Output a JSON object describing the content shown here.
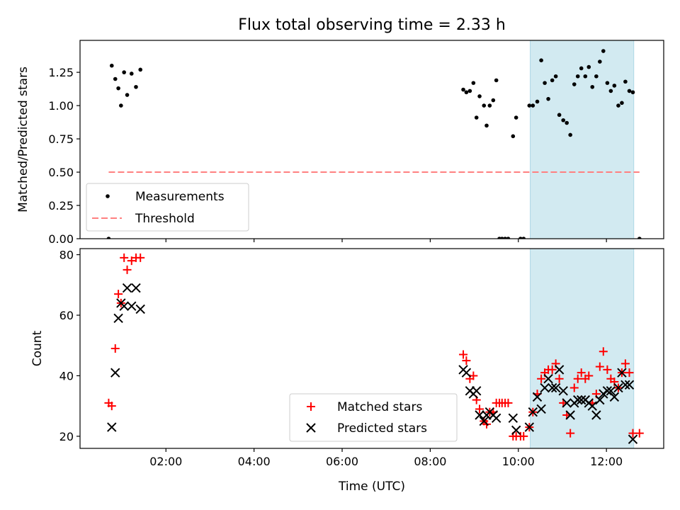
{
  "chart_data": [
    {
      "type": "scatter",
      "title": "Flux total observing time = 2.33 h",
      "ylabel": "Matched/Predicted stars",
      "xlabel": "",
      "xlim": [
        0.05,
        13.3
      ],
      "ylim": [
        0,
        1.49
      ],
      "yticks": [
        0,
        0.25,
        0.5,
        0.75,
        1.0,
        1.25
      ],
      "ytick_labels": [
        "0.00",
        "0.25",
        "0.50",
        "0.75",
        "1.00",
        "1.25"
      ],
      "xticks": [
        2,
        4,
        6,
        8,
        10,
        12
      ],
      "shaded_x_range": [
        10.27,
        12.62
      ],
      "shaded_color": "#add8e6",
      "threshold": {
        "name": "Threshold",
        "y": 0.5,
        "x": [
          0.7,
          12.75
        ],
        "color": "#ff8080"
      },
      "legend_position": "lower-left",
      "series": [
        {
          "name": "Measurements",
          "color": "#000000",
          "marker": "dot",
          "points": [
            [
              0.7,
              0.0
            ],
            [
              0.77,
              1.3
            ],
            [
              0.85,
              1.2
            ],
            [
              0.92,
              1.13
            ],
            [
              0.98,
              1.0
            ],
            [
              1.05,
              1.25
            ],
            [
              1.12,
              1.08
            ],
            [
              1.22,
              1.24
            ],
            [
              1.32,
              1.14
            ],
            [
              1.42,
              1.27
            ],
            [
              8.75,
              1.12
            ],
            [
              8.82,
              1.1
            ],
            [
              8.9,
              1.11
            ],
            [
              8.98,
              1.17
            ],
            [
              9.05,
              0.91
            ],
            [
              9.12,
              1.07
            ],
            [
              9.22,
              1.0
            ],
            [
              9.28,
              0.85
            ],
            [
              9.35,
              1.0
            ],
            [
              9.43,
              1.04
            ],
            [
              9.5,
              1.19
            ],
            [
              9.57,
              0.0
            ],
            [
              9.63,
              0.0
            ],
            [
              9.7,
              0.0
            ],
            [
              9.77,
              0.0
            ],
            [
              9.88,
              0.77
            ],
            [
              9.95,
              0.91
            ],
            [
              10.05,
              0.0
            ],
            [
              10.12,
              0.0
            ],
            [
              10.25,
              1.0
            ],
            [
              10.33,
              1.0
            ],
            [
              10.43,
              1.03
            ],
            [
              10.52,
              1.34
            ],
            [
              10.6,
              1.17
            ],
            [
              10.68,
              1.05
            ],
            [
              10.77,
              1.19
            ],
            [
              10.85,
              1.22
            ],
            [
              10.93,
              0.93
            ],
            [
              11.02,
              0.89
            ],
            [
              11.1,
              0.87
            ],
            [
              11.18,
              0.78
            ],
            [
              11.27,
              1.16
            ],
            [
              11.35,
              1.22
            ],
            [
              11.43,
              1.28
            ],
            [
              11.52,
              1.22
            ],
            [
              11.6,
              1.29
            ],
            [
              11.68,
              1.14
            ],
            [
              11.77,
              1.22
            ],
            [
              11.85,
              1.33
            ],
            [
              11.93,
              1.41
            ],
            [
              12.02,
              1.17
            ],
            [
              12.1,
              1.11
            ],
            [
              12.18,
              1.15
            ],
            [
              12.27,
              1.0
            ],
            [
              12.35,
              1.02
            ],
            [
              12.43,
              1.18
            ],
            [
              12.52,
              1.11
            ],
            [
              12.6,
              1.1
            ],
            [
              12.75,
              0.0
            ]
          ]
        }
      ]
    },
    {
      "type": "scatter",
      "title": "",
      "ylabel": "Count",
      "xlabel": "Time (UTC)",
      "xlim": [
        0.05,
        13.3
      ],
      "ylim": [
        16,
        82
      ],
      "yticks": [
        20,
        40,
        60,
        80
      ],
      "ytick_labels": [
        "20",
        "40",
        "60",
        "80"
      ],
      "xticks": [
        2,
        4,
        6,
        8,
        10,
        12
      ],
      "xtick_labels": [
        "02:00",
        "04:00",
        "06:00",
        "08:00",
        "10:00",
        "12:00"
      ],
      "shaded_x_range": [
        10.27,
        12.62
      ],
      "shaded_color": "#add8e6",
      "legend_position": "lower-center",
      "series": [
        {
          "name": "Matched stars",
          "color": "#ff0000",
          "marker": "plus",
          "points": [
            [
              0.7,
              31
            ],
            [
              0.77,
              30
            ],
            [
              0.85,
              49
            ],
            [
              0.92,
              67
            ],
            [
              0.98,
              64
            ],
            [
              1.05,
              79
            ],
            [
              1.12,
              75
            ],
            [
              1.22,
              78
            ],
            [
              1.32,
              79
            ],
            [
              1.42,
              79
            ],
            [
              8.75,
              47
            ],
            [
              8.82,
              45
            ],
            [
              8.9,
              39
            ],
            [
              8.98,
              40
            ],
            [
              9.05,
              32
            ],
            [
              9.12,
              29
            ],
            [
              9.22,
              25
            ],
            [
              9.28,
              24
            ],
            [
              9.35,
              28
            ],
            [
              9.43,
              28
            ],
            [
              9.5,
              31
            ],
            [
              9.57,
              31
            ],
            [
              9.63,
              31
            ],
            [
              9.7,
              31
            ],
            [
              9.77,
              31
            ],
            [
              9.88,
              20
            ],
            [
              9.95,
              20
            ],
            [
              10.05,
              20
            ],
            [
              10.12,
              20
            ],
            [
              10.25,
              23
            ],
            [
              10.33,
              28
            ],
            [
              10.43,
              34
            ],
            [
              10.52,
              39
            ],
            [
              10.6,
              41
            ],
            [
              10.68,
              42
            ],
            [
              10.77,
              42
            ],
            [
              10.85,
              44
            ],
            [
              10.93,
              39
            ],
            [
              11.02,
              31
            ],
            [
              11.1,
              27
            ],
            [
              11.18,
              21
            ],
            [
              11.27,
              36
            ],
            [
              11.35,
              39
            ],
            [
              11.43,
              41
            ],
            [
              11.52,
              39
            ],
            [
              11.6,
              40
            ],
            [
              11.68,
              31
            ],
            [
              11.77,
              34
            ],
            [
              11.85,
              43
            ],
            [
              11.93,
              48
            ],
            [
              12.02,
              42
            ],
            [
              12.1,
              39
            ],
            [
              12.18,
              38
            ],
            [
              12.27,
              36
            ],
            [
              12.35,
              41
            ],
            [
              12.43,
              44
            ],
            [
              12.52,
              41
            ],
            [
              12.6,
              21
            ],
            [
              12.75,
              21
            ]
          ]
        },
        {
          "name": "Predicted stars",
          "color": "#000000",
          "marker": "x",
          "points": [
            [
              0.77,
              23
            ],
            [
              0.85,
              41
            ],
            [
              0.92,
              59
            ],
            [
              0.98,
              64
            ],
            [
              1.05,
              63
            ],
            [
              1.12,
              69
            ],
            [
              1.22,
              63
            ],
            [
              1.32,
              69
            ],
            [
              1.42,
              62
            ],
            [
              8.75,
              42
            ],
            [
              8.82,
              41
            ],
            [
              8.9,
              35
            ],
            [
              8.98,
              34
            ],
            [
              9.05,
              35
            ],
            [
              9.12,
              27
            ],
            [
              9.22,
              25
            ],
            [
              9.28,
              27
            ],
            [
              9.35,
              28
            ],
            [
              9.43,
              27
            ],
            [
              9.5,
              26
            ],
            [
              9.88,
              26
            ],
            [
              9.95,
              22
            ],
            [
              10.25,
              23
            ],
            [
              10.33,
              28
            ],
            [
              10.43,
              33
            ],
            [
              10.52,
              29
            ],
            [
              10.6,
              36
            ],
            [
              10.68,
              39
            ],
            [
              10.77,
              36
            ],
            [
              10.85,
              36
            ],
            [
              10.93,
              42
            ],
            [
              11.02,
              35
            ],
            [
              11.1,
              31
            ],
            [
              11.18,
              27
            ],
            [
              11.27,
              31
            ],
            [
              11.35,
              32
            ],
            [
              11.43,
              32
            ],
            [
              11.52,
              32
            ],
            [
              11.6,
              31
            ],
            [
              11.68,
              30
            ],
            [
              11.77,
              27
            ],
            [
              11.85,
              32
            ],
            [
              11.93,
              34
            ],
            [
              12.02,
              35
            ],
            [
              12.1,
              35
            ],
            [
              12.18,
              33
            ],
            [
              12.27,
              36
            ],
            [
              12.35,
              41
            ],
            [
              12.43,
              37
            ],
            [
              12.52,
              37
            ],
            [
              12.6,
              19
            ]
          ]
        }
      ]
    }
  ]
}
